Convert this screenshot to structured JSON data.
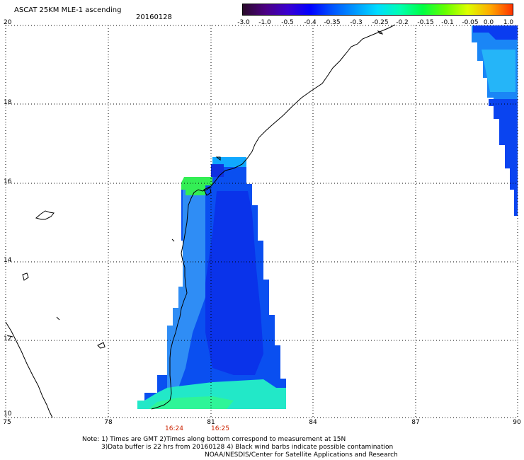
{
  "header": {
    "title": "ASCAT 25KM MLE-1 ascending",
    "date": "20160128"
  },
  "colorbar": {
    "ticks": [
      "-3.0",
      "-1.0",
      "-0.5",
      "-0.4",
      "-0.35",
      "-0.3",
      "-0.25",
      "-0.2",
      "-0.15",
      "-0.1",
      "-0.05",
      "0.0",
      "1.0"
    ],
    "gradient": [
      "#2a0a2a",
      "#4b0082",
      "#3a00d0",
      "#0000ff",
      "#0055ff",
      "#0099ff",
      "#00ddff",
      "#00ffb0",
      "#00ff44",
      "#66ff00",
      "#ddff00",
      "#ffaa00",
      "#ff3300"
    ]
  },
  "map": {
    "lat_labels": [
      "20",
      "18",
      "16",
      "14",
      "12",
      "10"
    ],
    "lon_labels": [
      "75",
      "78",
      "81",
      "84",
      "87",
      "90"
    ],
    "grid": "dotted",
    "coastline_color": "#000000"
  },
  "time_labels": [
    "16:24",
    "16:25"
  ],
  "notes": {
    "line1": "Note: 1) Times are GMT 2)Times along bottom correspond to measurement at 15N",
    "line2": "3)Data buffer is 22 hrs from 20160128 4) Black wind barbs indicate possible contamination",
    "line3": "NOAA/NESDIS/Center for Satellite Applications and Research"
  }
}
